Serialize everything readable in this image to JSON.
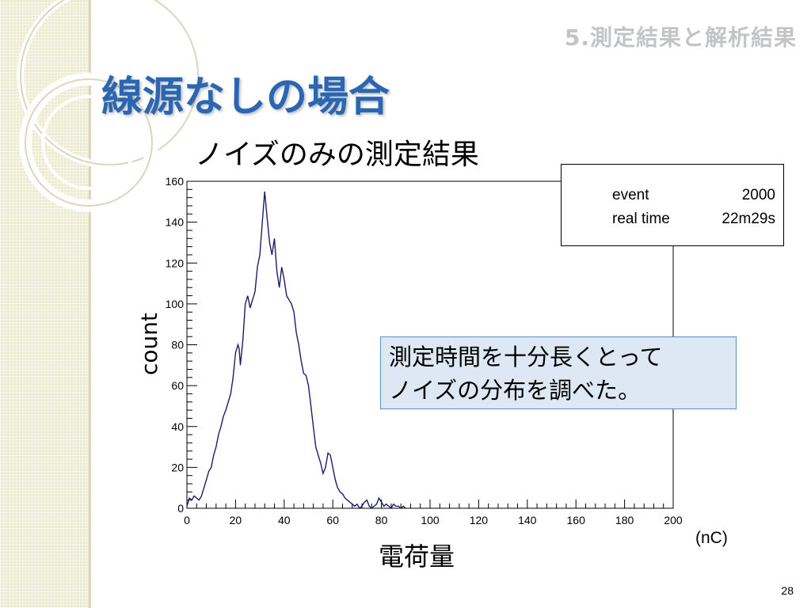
{
  "slide": {
    "section": "5.測定結果と解析結果",
    "title": "線源なしの場合",
    "subtitle": "ノイズのみの測定結果",
    "callout_lines": [
      "測定時間を十分長くとって",
      "ノイズの分布を調べた。"
    ],
    "page_number": "28"
  },
  "stats": {
    "rows": [
      {
        "label": "event",
        "value": "2000"
      },
      {
        "label": "real time",
        "value": "22m29s"
      }
    ]
  },
  "colors": {
    "title": "#2a66b2",
    "line": "#1c1c6e",
    "callout_bg": "#dde8f4",
    "callout_border": "#5d8ec6"
  },
  "chart_data": {
    "type": "line",
    "title": "",
    "xlabel": "電荷量",
    "ylabel": "count",
    "x_unit": "(nC)",
    "xlim": [
      0,
      200
    ],
    "ylim": [
      0,
      160
    ],
    "x_ticks": [
      0,
      20,
      40,
      60,
      80,
      100,
      120,
      140,
      160,
      180,
      200
    ],
    "y_ticks": [
      0,
      20,
      40,
      60,
      80,
      100,
      120,
      140,
      160
    ],
    "grid": false,
    "series": [
      {
        "name": "",
        "x": [
          0,
          1,
          2,
          3,
          4,
          5,
          6,
          7,
          8,
          9,
          10,
          11,
          12,
          13,
          14,
          15,
          16,
          17,
          18,
          19,
          20,
          21,
          21.5,
          22,
          23,
          24,
          25,
          26,
          27,
          28,
          29,
          30,
          31,
          32,
          33,
          34,
          35,
          36,
          37,
          38,
          39,
          40,
          41,
          42,
          43,
          44,
          45,
          46,
          47,
          48,
          49,
          50,
          51,
          52,
          53,
          54,
          55,
          56,
          57,
          58,
          59,
          60,
          61,
          62,
          63,
          64,
          65,
          66,
          67,
          68,
          69,
          70,
          71,
          72,
          73,
          74,
          75,
          76,
          77,
          78,
          79,
          80,
          81,
          82,
          83,
          84,
          85,
          86,
          87,
          88,
          89,
          90
        ],
        "y": [
          1,
          5,
          4,
          6,
          5,
          4,
          6,
          10,
          14,
          18,
          20,
          26,
          30,
          36,
          40,
          45,
          48,
          52,
          56,
          64,
          76,
          80,
          78,
          70,
          82,
          100,
          104,
          98,
          102,
          106,
          118,
          124,
          140,
          155,
          142,
          130,
          124,
          132,
          116,
          108,
          118,
          112,
          104,
          102,
          100,
          96,
          86,
          80,
          72,
          66,
          65,
          60,
          50,
          40,
          30,
          26,
          22,
          17,
          20,
          27,
          26,
          20,
          14,
          10,
          8,
          7,
          5,
          4,
          3,
          2,
          1,
          2,
          0,
          1,
          3,
          4,
          1,
          0,
          1,
          2,
          5,
          3,
          1,
          2,
          1,
          0,
          2,
          1,
          1,
          0,
          1,
          0
        ]
      }
    ]
  }
}
